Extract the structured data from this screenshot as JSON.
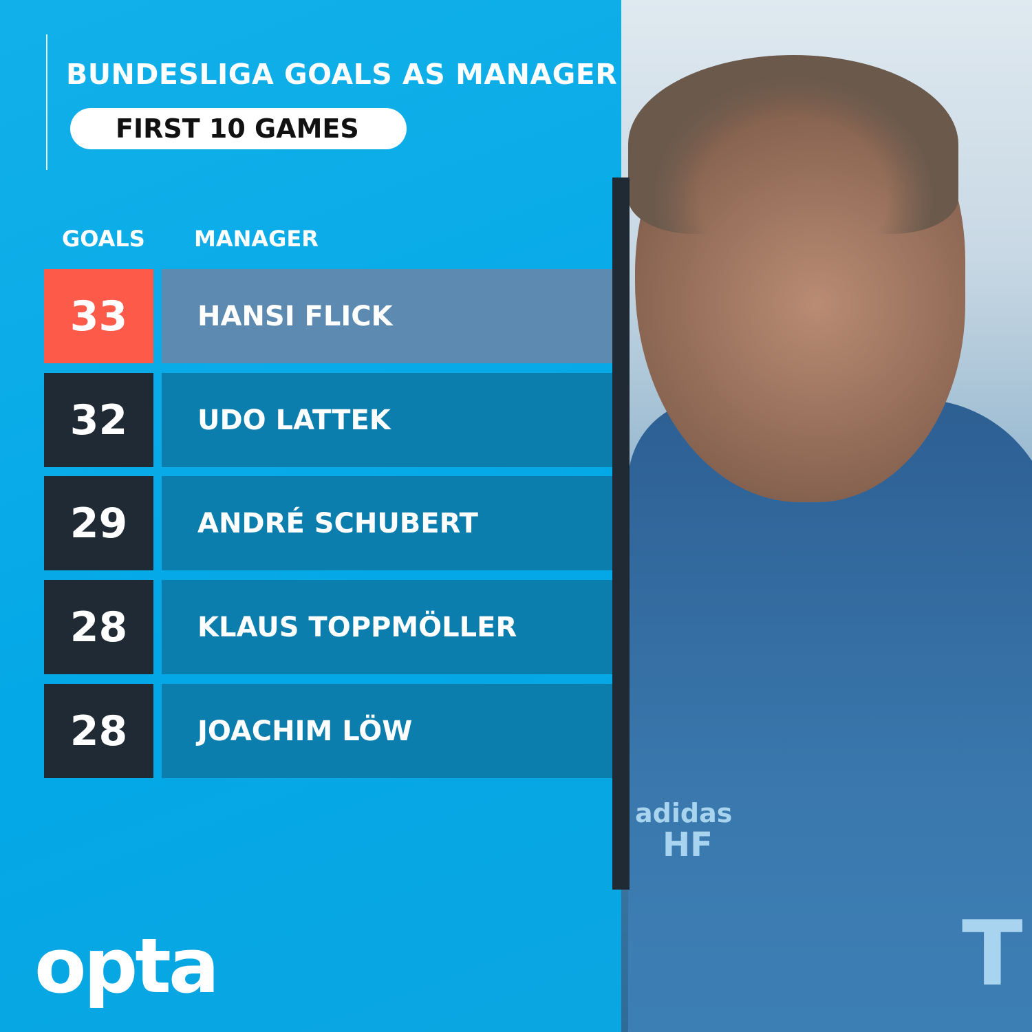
{
  "title": "BUNDESLIGA GOALS AS MANAGER",
  "subtitle": "FIRST 10 GAMES",
  "colors": {
    "background": "#0aaee8",
    "highlight_number": "#fe5a4a",
    "highlight_name": "#5d8ab0",
    "number_box": "#1f2a35",
    "name_box": "#0b7eae"
  },
  "logo": "opta",
  "photo": {
    "jacket_initials": "HF",
    "jacket_brand": "adidas"
  },
  "chart_data": {
    "type": "table",
    "columns": [
      "GOALS",
      "MANAGER"
    ],
    "rows": [
      {
        "goals": "33",
        "manager": "HANSI FLICK",
        "highlighted": true
      },
      {
        "goals": "32",
        "manager": "UDO LATTEK"
      },
      {
        "goals": "29",
        "manager": "ANDRÉ SCHUBERT"
      },
      {
        "goals": "28",
        "manager": "KLAUS TOPPMÖLLER"
      },
      {
        "goals": "28",
        "manager": "JOACHIM LÖW"
      }
    ]
  }
}
